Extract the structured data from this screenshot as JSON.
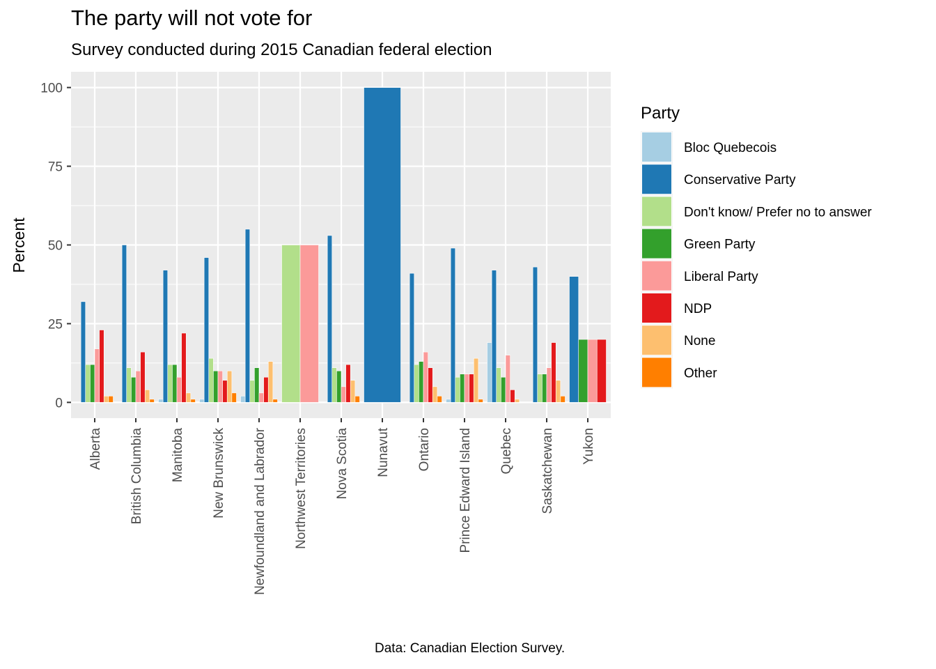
{
  "chart_data": {
    "type": "bar",
    "title": "The party will not vote for",
    "subtitle": "Survey conducted during 2015 Canadian federal election",
    "caption": "Data: Canadian Election Survey.",
    "xlabel": "",
    "ylabel": "Percent",
    "ylim": [
      -5,
      105
    ],
    "yticks": [
      0,
      25,
      50,
      75,
      100
    ],
    "grid": true,
    "legend": {
      "title": "Party",
      "placement": "right"
    },
    "categories": [
      "Alberta",
      "British Columbia",
      "Manitoba",
      "New Brunswick",
      "Newfoundland and Labrador",
      "Northwest Territories",
      "Nova Scotia",
      "Nunavut",
      "Ontario",
      "Prince Edward Island",
      "Quebec",
      "Saskatchewan",
      "Yukon"
    ],
    "series": [
      {
        "name": "Bloc Quebecois",
        "color": "#A6CEE3",
        "values": [
          0,
          0,
          1,
          1,
          2,
          null,
          0,
          null,
          0,
          1,
          19,
          0,
          null
        ]
      },
      {
        "name": "Conservative Party",
        "color": "#1F78B4",
        "values": [
          32,
          50,
          42,
          46,
          55,
          null,
          53,
          100,
          41,
          49,
          42,
          43,
          40
        ]
      },
      {
        "name": "Don't know/ Prefer no to answer",
        "color": "#B2DF8A",
        "values": [
          12,
          11,
          12,
          14,
          7,
          50,
          11,
          null,
          12,
          8,
          11,
          9,
          null
        ]
      },
      {
        "name": "Green Party",
        "color": "#33A02C",
        "values": [
          12,
          8,
          12,
          10,
          11,
          null,
          10,
          null,
          13,
          9,
          8,
          9,
          20
        ]
      },
      {
        "name": "Liberal Party",
        "color": "#FB9A99",
        "values": [
          17,
          10,
          8,
          10,
          3,
          50,
          5,
          null,
          16,
          9,
          15,
          11,
          20
        ]
      },
      {
        "name": "NDP",
        "color": "#E31A1C",
        "values": [
          23,
          16,
          22,
          7,
          8,
          null,
          12,
          null,
          11,
          9,
          4,
          19,
          20
        ]
      },
      {
        "name": "None",
        "color": "#FDBF6F",
        "values": [
          2,
          4,
          3,
          10,
          13,
          null,
          7,
          null,
          5,
          14,
          1,
          7,
          null
        ]
      },
      {
        "name": "Other",
        "color": "#FF7F00",
        "values": [
          2,
          1,
          1,
          3,
          1,
          null,
          2,
          null,
          2,
          1,
          0,
          2,
          null
        ]
      }
    ]
  }
}
